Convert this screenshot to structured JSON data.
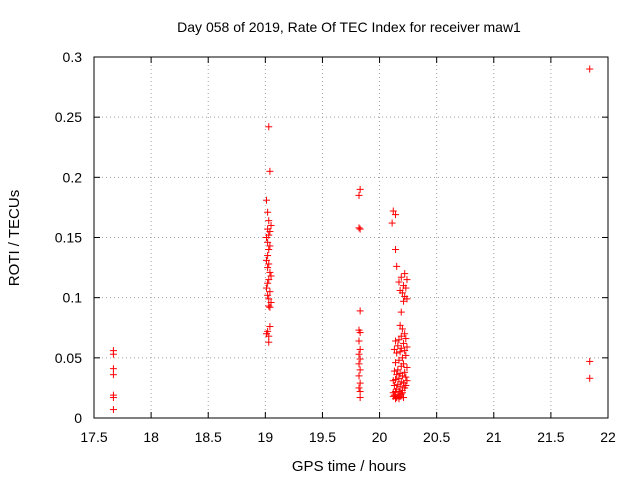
{
  "chart_data": {
    "type": "scatter",
    "title": "Day 058 of 2019, Rate Of TEC Index for receiver maw1",
    "xlabel": "GPS time / hours",
    "ylabel": "ROTI / TECUs",
    "xlim": [
      17.5,
      22
    ],
    "ylim": [
      0,
      0.3
    ],
    "xticks": [
      "17.5",
      "18",
      "18.5",
      "19",
      "19.5",
      "20",
      "20.5",
      "21",
      "21.5",
      "22"
    ],
    "yticks": [
      "0",
      "0.05",
      "0.1",
      "0.15",
      "0.2",
      "0.25",
      "0.3"
    ],
    "grid": true,
    "marker": "+",
    "color": "#ff0000",
    "series": [
      {
        "name": "ROTI",
        "points": [
          [
            17.67,
            0.056
          ],
          [
            17.67,
            0.053
          ],
          [
            17.67,
            0.041
          ],
          [
            17.67,
            0.036
          ],
          [
            17.67,
            0.019
          ],
          [
            17.67,
            0.017
          ],
          [
            17.67,
            0.007
          ],
          [
            19.03,
            0.242
          ],
          [
            19.04,
            0.205
          ],
          [
            19.01,
            0.181
          ],
          [
            19.02,
            0.171
          ],
          [
            19.03,
            0.164
          ],
          [
            19.05,
            0.16
          ],
          [
            19.02,
            0.157
          ],
          [
            19.04,
            0.155
          ],
          [
            19.03,
            0.152
          ],
          [
            19.01,
            0.15
          ],
          [
            19.02,
            0.146
          ],
          [
            19.04,
            0.143
          ],
          [
            19.03,
            0.14
          ],
          [
            19.02,
            0.135
          ],
          [
            19.01,
            0.131
          ],
          [
            19.03,
            0.128
          ],
          [
            19.02,
            0.125
          ],
          [
            19.04,
            0.121
          ],
          [
            19.05,
            0.118
          ],
          [
            19.03,
            0.115
          ],
          [
            19.02,
            0.112
          ],
          [
            19.01,
            0.108
          ],
          [
            19.04,
            0.105
          ],
          [
            19.02,
            0.102
          ],
          [
            19.03,
            0.099
          ],
          [
            19.05,
            0.096
          ],
          [
            19.03,
            0.093
          ],
          [
            19.04,
            0.092
          ],
          [
            19.04,
            0.076
          ],
          [
            19.02,
            0.072
          ],
          [
            19.01,
            0.07
          ],
          [
            19.03,
            0.068
          ],
          [
            19.03,
            0.063
          ],
          [
            19.83,
            0.19
          ],
          [
            19.82,
            0.185
          ],
          [
            19.82,
            0.158
          ],
          [
            19.83,
            0.157
          ],
          [
            19.83,
            0.089
          ],
          [
            19.82,
            0.073
          ],
          [
            19.83,
            0.071
          ],
          [
            19.82,
            0.064
          ],
          [
            19.83,
            0.057
          ],
          [
            19.82,
            0.053
          ],
          [
            19.83,
            0.049
          ],
          [
            19.82,
            0.045
          ],
          [
            19.83,
            0.04
          ],
          [
            19.82,
            0.035
          ],
          [
            19.83,
            0.029
          ],
          [
            19.82,
            0.025
          ],
          [
            19.83,
            0.022
          ],
          [
            19.83,
            0.017
          ],
          [
            20.12,
            0.172
          ],
          [
            20.14,
            0.169
          ],
          [
            20.11,
            0.162
          ],
          [
            20.14,
            0.14
          ],
          [
            20.15,
            0.126
          ],
          [
            20.22,
            0.12
          ],
          [
            20.19,
            0.117
          ],
          [
            20.24,
            0.115
          ],
          [
            20.17,
            0.113
          ],
          [
            20.21,
            0.11
          ],
          [
            20.23,
            0.108
          ],
          [
            20.18,
            0.106
          ],
          [
            20.2,
            0.104
          ],
          [
            20.22,
            0.101
          ],
          [
            20.24,
            0.099
          ],
          [
            20.21,
            0.097
          ],
          [
            20.19,
            0.088
          ],
          [
            20.18,
            0.077
          ],
          [
            20.2,
            0.074
          ],
          [
            20.22,
            0.07
          ],
          [
            20.19,
            0.068
          ],
          [
            20.23,
            0.066
          ],
          [
            20.17,
            0.065
          ],
          [
            20.14,
            0.064
          ],
          [
            20.21,
            0.062
          ],
          [
            20.16,
            0.06
          ],
          [
            20.24,
            0.059
          ],
          [
            20.19,
            0.058
          ],
          [
            20.13,
            0.057
          ],
          [
            20.22,
            0.056
          ],
          [
            20.18,
            0.055
          ],
          [
            20.15,
            0.054
          ],
          [
            20.23,
            0.052
          ],
          [
            20.2,
            0.05
          ],
          [
            20.17,
            0.048
          ],
          [
            20.14,
            0.046
          ],
          [
            20.21,
            0.045
          ],
          [
            20.19,
            0.043
          ],
          [
            20.24,
            0.042
          ],
          [
            20.16,
            0.04
          ],
          [
            20.13,
            0.039
          ],
          [
            20.22,
            0.038
          ],
          [
            20.18,
            0.037
          ],
          [
            20.15,
            0.036
          ],
          [
            20.2,
            0.035
          ],
          [
            20.23,
            0.034
          ],
          [
            20.17,
            0.033
          ],
          [
            20.14,
            0.032
          ],
          [
            20.12,
            0.031
          ],
          [
            20.19,
            0.03
          ],
          [
            20.21,
            0.029
          ],
          [
            20.16,
            0.028
          ],
          [
            20.13,
            0.027
          ],
          [
            20.18,
            0.026
          ],
          [
            20.22,
            0.025
          ],
          [
            20.15,
            0.024
          ],
          [
            20.2,
            0.023
          ],
          [
            20.17,
            0.022
          ],
          [
            20.14,
            0.022
          ],
          [
            20.12,
            0.021
          ],
          [
            20.19,
            0.02
          ],
          [
            20.16,
            0.019
          ],
          [
            20.13,
            0.019
          ],
          [
            20.18,
            0.018
          ],
          [
            20.15,
            0.017
          ],
          [
            20.21,
            0.017
          ],
          [
            20.14,
            0.016
          ],
          [
            20.17,
            0.016
          ],
          [
            20.12,
            0.018
          ],
          [
            20.2,
            0.021
          ],
          [
            20.23,
            0.027
          ],
          [
            20.24,
            0.031
          ],
          [
            21.84,
            0.29
          ],
          [
            21.84,
            0.047
          ],
          [
            21.84,
            0.033
          ]
        ]
      }
    ]
  }
}
